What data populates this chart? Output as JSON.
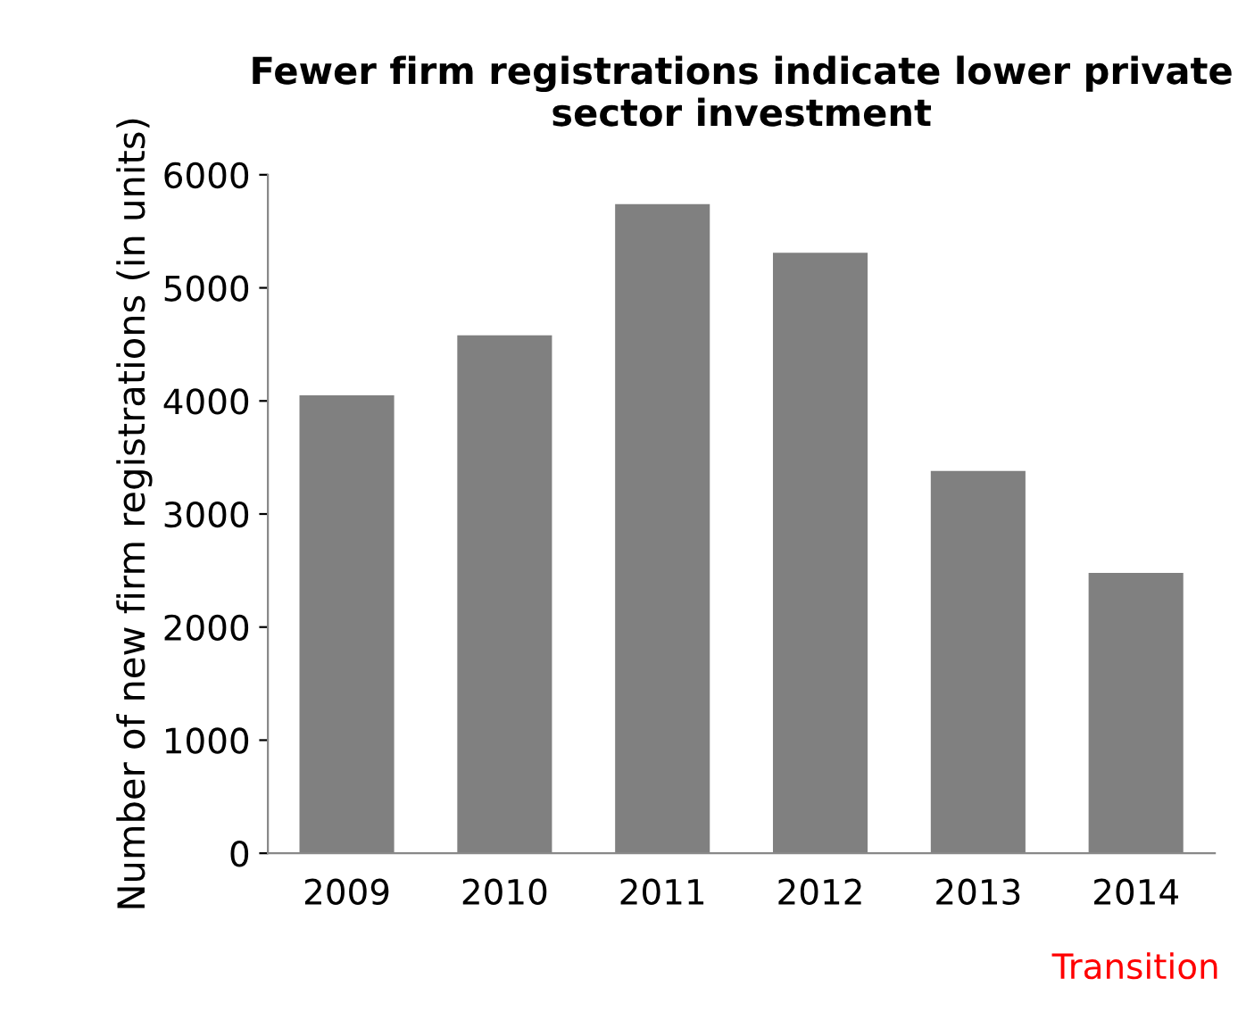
{
  "chart_data": {
    "type": "bar",
    "title": "Fewer firm registrations indicate lower private sector investment",
    "ylabel": "Number of new firm registrations (in units)",
    "categories": [
      "2009",
      "2010",
      "2011",
      "2012",
      "2013",
      "2014"
    ],
    "values": [
      4050,
      4580,
      5740,
      5310,
      3380,
      2480
    ],
    "color": "#808080",
    "ylim": [
      0,
      6000
    ],
    "yticks": [
      0,
      1000,
      2000,
      3000,
      4000,
      5000,
      6000
    ],
    "grid": false,
    "annotations": [
      "Transition"
    ]
  }
}
